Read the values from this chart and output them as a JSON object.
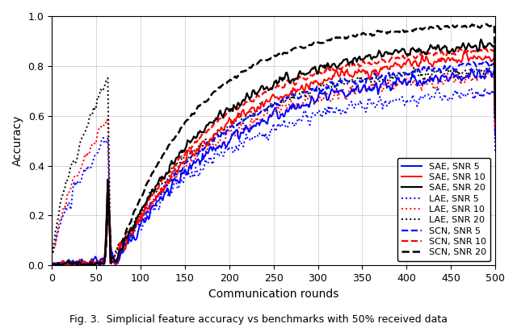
{
  "title": "",
  "xlabel": "Communication rounds",
  "ylabel": "Accuracy",
  "caption": "Fig. 3.  Simplicial feature accuracy vs benchmarks with 50% received data",
  "xlim": [
    0,
    500
  ],
  "ylim": [
    0,
    1.0
  ],
  "xticks": [
    0,
    50,
    100,
    150,
    200,
    250,
    300,
    350,
    400,
    450,
    500
  ],
  "yticks": [
    0,
    0.2,
    0.4,
    0.6,
    0.8,
    1.0
  ],
  "legend": [
    {
      "label": "SAE, SNR 5",
      "color": "#0000FF",
      "ls": "solid",
      "lw": 1.4
    },
    {
      "label": "SAE, SNR 10",
      "color": "#FF0000",
      "ls": "solid",
      "lw": 1.4
    },
    {
      "label": "SAE, SNR 20",
      "color": "#000000",
      "ls": "solid",
      "lw": 1.6
    },
    {
      "label": "LAE, SNR 5",
      "color": "#0000FF",
      "ls": "dotted",
      "lw": 1.4
    },
    {
      "label": "LAE, SNR 10",
      "color": "#FF0000",
      "ls": "dotted",
      "lw": 1.4
    },
    {
      "label": "LAE, SNR 20",
      "color": "#000000",
      "ls": "dotted",
      "lw": 1.4
    },
    {
      "label": "SCN, SNR 5",
      "color": "#0000FF",
      "ls": "dashed",
      "lw": 1.6
    },
    {
      "label": "SCN, SNR 10",
      "color": "#FF0000",
      "ls": "dashed",
      "lw": 1.6
    },
    {
      "label": "SCN, SNR 20",
      "color": "#000000",
      "ls": "dashed",
      "lw": 1.8
    }
  ],
  "n_rounds": 500,
  "event_round": 65
}
